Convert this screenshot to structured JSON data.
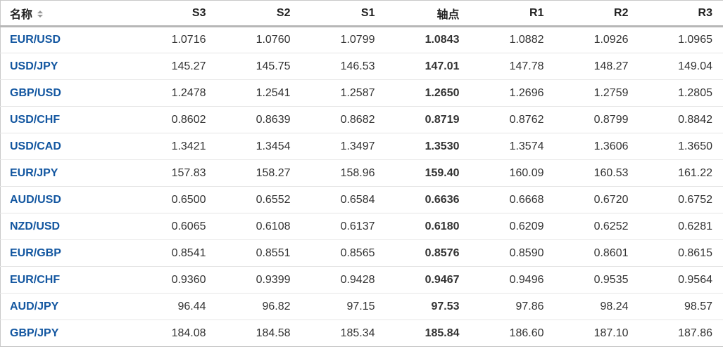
{
  "colors": {
    "pair_link_blue": "#1256a0",
    "header_rule_gray": "#b7b7b7",
    "row_divider_gray": "#e6e6e6",
    "sort_arrow_gray": "#999999"
  },
  "table": {
    "columns": [
      {
        "label": "名称"
      },
      {
        "label": "S3"
      },
      {
        "label": "S2"
      },
      {
        "label": "S1"
      },
      {
        "label": "轴点"
      },
      {
        "label": "R1"
      },
      {
        "label": "R2"
      },
      {
        "label": "R3"
      }
    ],
    "rows": [
      {
        "pair": "EUR/USD",
        "s3": "1.0716",
        "s2": "1.0760",
        "s1": "1.0799",
        "pivot": "1.0843",
        "r1": "1.0882",
        "r2": "1.0926",
        "r3": "1.0965"
      },
      {
        "pair": "USD/JPY",
        "s3": "145.27",
        "s2": "145.75",
        "s1": "146.53",
        "pivot": "147.01",
        "r1": "147.78",
        "r2": "148.27",
        "r3": "149.04"
      },
      {
        "pair": "GBP/USD",
        "s3": "1.2478",
        "s2": "1.2541",
        "s1": "1.2587",
        "pivot": "1.2650",
        "r1": "1.2696",
        "r2": "1.2759",
        "r3": "1.2805"
      },
      {
        "pair": "USD/CHF",
        "s3": "0.8602",
        "s2": "0.8639",
        "s1": "0.8682",
        "pivot": "0.8719",
        "r1": "0.8762",
        "r2": "0.8799",
        "r3": "0.8842"
      },
      {
        "pair": "USD/CAD",
        "s3": "1.3421",
        "s2": "1.3454",
        "s1": "1.3497",
        "pivot": "1.3530",
        "r1": "1.3574",
        "r2": "1.3606",
        "r3": "1.3650"
      },
      {
        "pair": "EUR/JPY",
        "s3": "157.83",
        "s2": "158.27",
        "s1": "158.96",
        "pivot": "159.40",
        "r1": "160.09",
        "r2": "160.53",
        "r3": "161.22"
      },
      {
        "pair": "AUD/USD",
        "s3": "0.6500",
        "s2": "0.6552",
        "s1": "0.6584",
        "pivot": "0.6636",
        "r1": "0.6668",
        "r2": "0.6720",
        "r3": "0.6752"
      },
      {
        "pair": "NZD/USD",
        "s3": "0.6065",
        "s2": "0.6108",
        "s1": "0.6137",
        "pivot": "0.6180",
        "r1": "0.6209",
        "r2": "0.6252",
        "r3": "0.6281"
      },
      {
        "pair": "EUR/GBP",
        "s3": "0.8541",
        "s2": "0.8551",
        "s1": "0.8565",
        "pivot": "0.8576",
        "r1": "0.8590",
        "r2": "0.8601",
        "r3": "0.8615"
      },
      {
        "pair": "EUR/CHF",
        "s3": "0.9360",
        "s2": "0.9399",
        "s1": "0.9428",
        "pivot": "0.9467",
        "r1": "0.9496",
        "r2": "0.9535",
        "r3": "0.9564"
      },
      {
        "pair": "AUD/JPY",
        "s3": "96.44",
        "s2": "96.82",
        "s1": "97.15",
        "pivot": "97.53",
        "r1": "97.86",
        "r2": "98.24",
        "r3": "98.57"
      },
      {
        "pair": "GBP/JPY",
        "s3": "184.08",
        "s2": "184.58",
        "s1": "185.34",
        "pivot": "185.84",
        "r1": "186.60",
        "r2": "187.10",
        "r3": "187.86"
      }
    ]
  }
}
